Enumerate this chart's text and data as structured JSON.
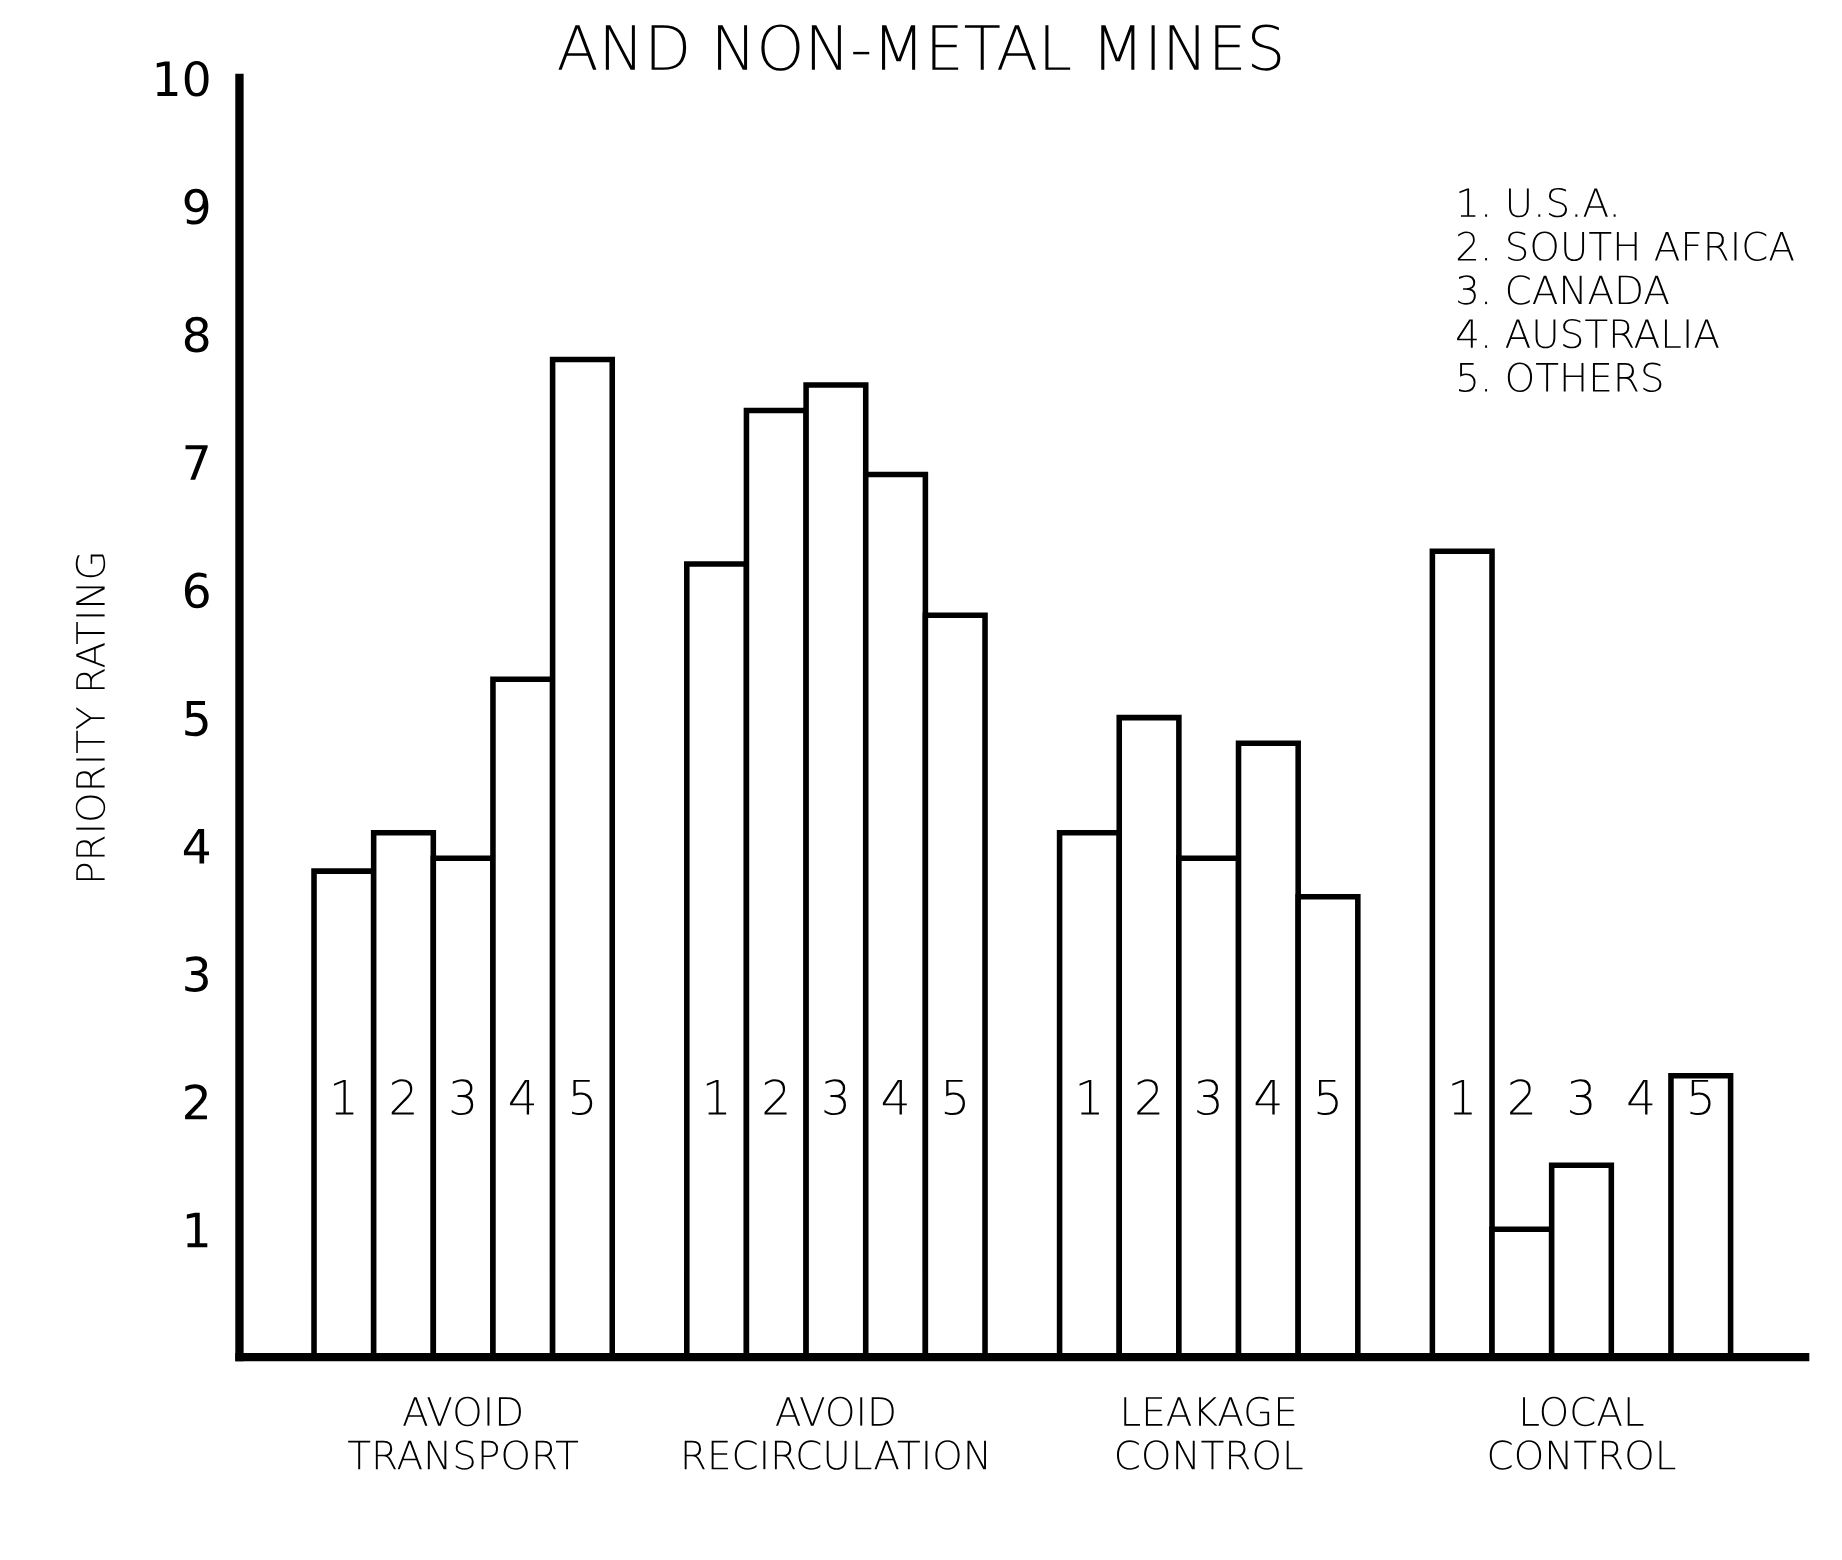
{
  "chart_data": {
    "type": "bar",
    "title": "AND NON-METAL MINES",
    "ylabel": "PRIORITY RATING",
    "categories": [
      "AVOID\nTRANSPORT",
      "AVOID\nRECIRCULATION",
      "LEAKAGE\nCONTROL",
      "LOCAL\nCONTROL"
    ],
    "series": [
      {
        "name": "1",
        "color": "#ffffff",
        "values": [
          3.8,
          6.2,
          4.1,
          6.3
        ]
      },
      {
        "name": "2",
        "color": "#ffffff",
        "values": [
          4.1,
          7.4,
          5.0,
          1.0
        ]
      },
      {
        "name": "3",
        "color": "#ffffff",
        "values": [
          3.9,
          7.6,
          3.9,
          1.5
        ]
      },
      {
        "name": "4",
        "color": "#ffffff",
        "values": [
          5.3,
          6.9,
          4.8,
          null
        ]
      },
      {
        "name": "5",
        "color": "#ffffff",
        "values": [
          7.8,
          5.8,
          3.6,
          2.2
        ]
      }
    ],
    "ylim": [
      0,
      10
    ],
    "yticks": [
      1,
      2,
      3,
      4,
      5,
      6,
      7,
      8,
      9,
      10
    ],
    "grid": false,
    "legend": false,
    "annotations": [
      "1. U.S.A.",
      "2. SOUTH AFRICA",
      "3. CANADA",
      "4. AUSTRALIA",
      "5. OTHERS"
    ]
  }
}
